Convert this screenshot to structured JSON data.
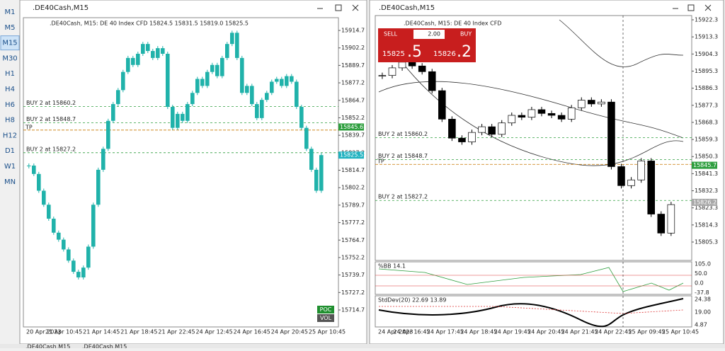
{
  "sidebar": {
    "timeframes": [
      "M1",
      "M5",
      "M15",
      "M30",
      "H1",
      "H4",
      "H6",
      "H8",
      "H12",
      "D1",
      "W1",
      "MN"
    ],
    "active": "M15"
  },
  "left": {
    "title": ".DE40Cash,M15",
    "header": ".DE40Cash, M15:  DE 40 Index CFD   15824.5  15831.5  15819.0  15825.5",
    "price_axis": [
      15914.7,
      15902.2,
      15889.7,
      15877.2,
      15864.7,
      15852.2,
      15839.7,
      15827.2,
      15814.7,
      15802.2,
      15789.7,
      15777.2,
      15764.7,
      15752.2,
      15739.7,
      15727.2,
      15714.7
    ],
    "time_axis": [
      "20 Apr 2023",
      "21 Apr 10:45",
      "21 Apr 14:45",
      "21 Apr 18:45",
      "21 Apr 22:45",
      "24 Apr 12:45",
      "24 Apr 16:45",
      "24 Apr 20:45",
      "25 Apr 10:45"
    ],
    "orders": [
      {
        "label": "BUY 2 at 15860.2",
        "price": 15860.2
      },
      {
        "label": "BUY 2 at 15848.7",
        "price": 15848.7
      },
      {
        "label": "BUY 2 at 15827.2",
        "price": 15827.2
      }
    ],
    "tp": {
      "label": "TP",
      "price": 15843.4
    },
    "price_tags": [
      {
        "price": 15845.6,
        "color": "#2e9e3e"
      },
      {
        "price": 15825.5,
        "color": "#20b2c0"
      }
    ],
    "buttons": [
      "POC",
      "VOL"
    ],
    "closes": [
      15818,
      15812,
      15800,
      15790,
      15780,
      15770,
      15765,
      15758,
      15750,
      15742,
      15738,
      15745,
      15760,
      15790,
      15815,
      15830,
      15850,
      15862,
      15872,
      15885,
      15895,
      15890,
      15898,
      15905,
      15900,
      15895,
      15902,
      15898,
      15860,
      15845,
      15855,
      15850,
      15862,
      15870,
      15880,
      15875,
      15885,
      15890,
      15882,
      15895,
      15905,
      15913,
      15895,
      15870,
      15875,
      15862,
      15852,
      15865,
      15870,
      15878,
      15880,
      15875,
      15882,
      15878,
      15860,
      15845,
      15830,
      15815,
      15800,
      15825.5
    ]
  },
  "right": {
    "title": ".DE40Cash,M15",
    "header": ".DE40Cash, M15:  DE 40 Index CFD",
    "trade": {
      "sell": "SELL",
      "lots": "2.00",
      "buy": "BUY",
      "bid_big": "15825",
      "bid_small": ".5",
      "ask_big": "15826",
      "ask_small": ".2"
    },
    "price_axis": [
      15922.3,
      15913.3,
      15904.3,
      15895.3,
      15886.3,
      15877.3,
      15868.3,
      15859.3,
      15850.3,
      15841.3,
      15832.3,
      15823.3,
      15814.3,
      15805.3
    ],
    "time_axis": [
      "24 Apr 2023",
      "24 Apr 16:45",
      "24 Apr 17:45",
      "24 Apr 18:45",
      "24 Apr 19:45",
      "24 Apr 20:45",
      "24 Apr 21:45",
      "24 Apr 22:45",
      "25 Apr 09:45",
      "25 Apr 10:45"
    ],
    "orders": [
      {
        "label": "BUY 2 at 15860.2",
        "price": 15860.2
      },
      {
        "label": "BUY 2 at 15848.7",
        "price": 15848.7
      },
      {
        "label": "BUY 2 at 15827.2",
        "price": 15827.2
      }
    ],
    "tp": {
      "label": "TP",
      "price": 15846.2
    },
    "price_tags": [
      {
        "price": 15845.7,
        "color": "#2e9e3e"
      },
      {
        "price": 15826.2,
        "color": "#a8a8a8"
      }
    ],
    "closes": [
      15893,
      15897,
      15900,
      15898,
      15895,
      15885,
      15870,
      15860,
      15858,
      15863,
      15866,
      15862,
      15868,
      15872,
      15871,
      15875,
      15873,
      15872,
      15870,
      15876,
      15880,
      15878,
      15879,
      15845,
      15835,
      15838,
      15848,
      15820,
      15810,
      15825
    ],
    "bb_label": "%BB 14.1",
    "bb_axis": [
      "105.0",
      "50.0",
      "0.0",
      "-37.8"
    ],
    "std_label": "StdDev(20) 22.69 13.89",
    "std_axis": [
      "24.38",
      "19.00",
      "4.87"
    ]
  },
  "tabs": [
    ".DE40Cash,M15",
    ".DE40Cash,M15"
  ]
}
